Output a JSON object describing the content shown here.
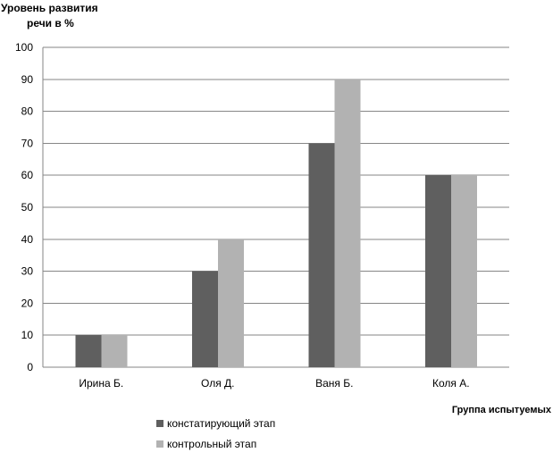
{
  "chart_data": {
    "type": "bar",
    "ylabel_lines": [
      "Уровень развития",
      "речи в %"
    ],
    "xlabel": "Группа испытуемых",
    "categories": [
      "Ирина Б.",
      "Оля Д.",
      "Ваня Б.",
      "Коля А."
    ],
    "series": [
      {
        "name": "констатирующий этап",
        "color": "#5f5f5f",
        "values": [
          10,
          30,
          70,
          60
        ]
      },
      {
        "name": "контрольный этап",
        "color": "#b2b2b2",
        "values": [
          10,
          40,
          90,
          60
        ]
      }
    ],
    "ylim": [
      0,
      100
    ],
    "yticks": [
      0,
      10,
      20,
      30,
      40,
      50,
      60,
      70,
      80,
      90,
      100
    ],
    "grid": true,
    "legend_position": "bottom-left"
  }
}
